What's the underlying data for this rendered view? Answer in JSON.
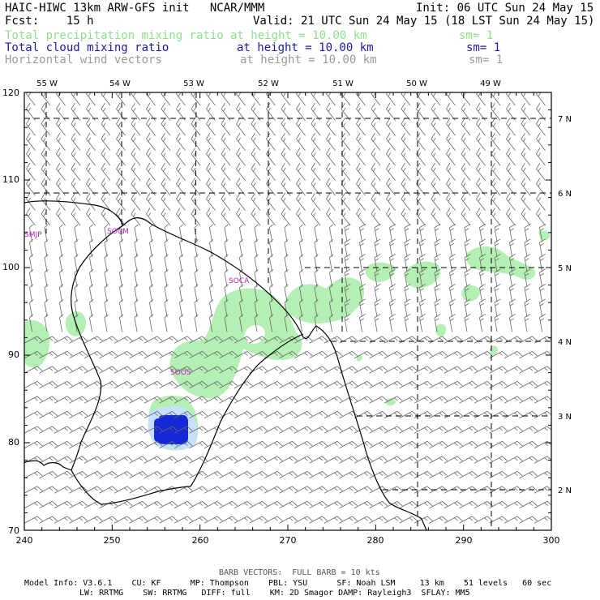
{
  "header": {
    "title": "HAIC-HIWC 13km ARW-GFS init   NCAR/MMM",
    "init": "Init: 06 UTC Sun 24 May 15",
    "fcst": "Fcst:    15 h",
    "valid": "Valid: 21 UTC Sun 24 May 15 (18 LST Sun 24 May 15)",
    "fields": [
      {
        "name": "Total precipitation mixing ratio",
        "height": "at height = 10.00 km",
        "sm": "sm= 1",
        "color": "#8ee08e"
      },
      {
        "name": "Total cloud mixing ratio",
        "height": "at height = 10.00 km",
        "sm": "sm= 1",
        "color": "#1a1aa8"
      },
      {
        "name": "Horizontal wind vectors",
        "height": "at height = 10.00 km",
        "sm": "sm= 1",
        "color": "#9a9a9a"
      }
    ]
  },
  "axes": {
    "x_ticks": [
      "240",
      "250",
      "260",
      "270",
      "280",
      "290",
      "300"
    ],
    "y_ticks": [
      "70",
      "80",
      "90",
      "100",
      "110",
      "120"
    ],
    "lon_labels": [
      "55 W",
      "54 W",
      "53 W",
      "52 W",
      "51 W",
      "50 W",
      "49 W"
    ],
    "lat_labels": [
      "7 N",
      "6 N",
      "5 N",
      "4 N",
      "3 N",
      "2 N"
    ]
  },
  "stations": [
    "SMJP",
    "SOCM",
    "SOCA",
    "SOOS"
  ],
  "footer": {
    "barb_note": "BARB VECTORS:  FULL BARB = 10 kts",
    "model_line1": "Model Info: V3.6.1    CU: KF      MP: Thompson    PBL: YSU      SF: Noah LSM     13 km    51 levels   60 sec",
    "model_line2": "LW: RRTMG    SW: RRTMG   DIFF: full    KM: 2D Smagor DAMP: Rayleigh3  SFLAY: MM5"
  },
  "colors": {
    "precip": "#b4f0b4",
    "cloud_core": "#1428d8",
    "cloud_halo": "#c8e0ff",
    "station": "#c020c0",
    "barb": "#666666"
  }
}
